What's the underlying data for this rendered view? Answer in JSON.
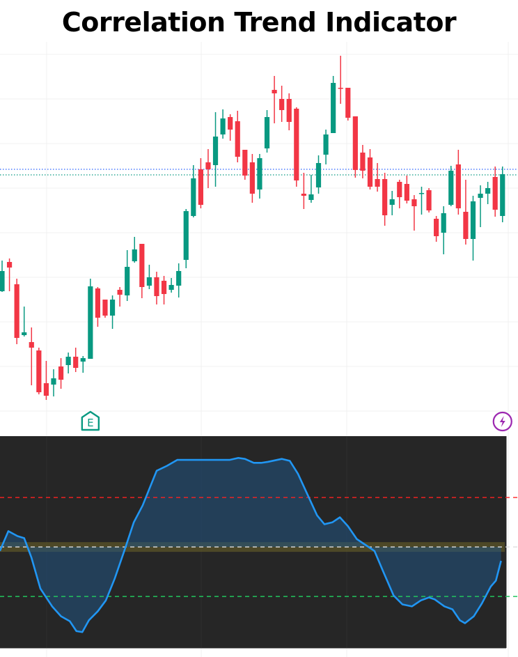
{
  "chart_data": [
    {
      "type": "candlestick",
      "title": "Correlation Trend Indicator",
      "xlabel": "",
      "ylabel": "",
      "ylim": [
        0,
        108
      ],
      "grid": true,
      "colors": {
        "up": "#089981",
        "down": "#f23645"
      },
      "price_lines": [
        {
          "value": 71.4,
          "color": "#2962ff",
          "style": "dotted"
        },
        {
          "value": 69.8,
          "color": "#089981",
          "style": "dotted"
        }
      ],
      "ohlc": [
        [
          36.4,
          45.2,
          36.2,
          42.2
        ],
        [
          44.8,
          45.8,
          36.4,
          43.2
        ],
        [
          38.4,
          40,
          21.2,
          23
        ],
        [
          23.8,
          32,
          23.4,
          24.6
        ],
        [
          21.8,
          26,
          9.4,
          20.2
        ],
        [
          19.4,
          20.2,
          6.8,
          7.4
        ],
        [
          10,
          16.4,
          5.2,
          6.4
        ],
        [
          9.6,
          14,
          6.2,
          11.4
        ],
        [
          14.8,
          17.2,
          8.4,
          11
        ],
        [
          15.2,
          18.8,
          12.8,
          17.6
        ],
        [
          17.6,
          20.2,
          13.2,
          14.4
        ],
        [
          16.2,
          17.8,
          13,
          17.2
        ],
        [
          17,
          40,
          17,
          37.8
        ],
        [
          37.2,
          37.6,
          26.2,
          28.8
        ],
        [
          34,
          34,
          28.8,
          29.4
        ],
        [
          29.4,
          35.2,
          25.6,
          34
        ],
        [
          36.8,
          37.6,
          32,
          35.4
        ],
        [
          35.2,
          48.2,
          33.6,
          43.4
        ],
        [
          45,
          52,
          44.6,
          48.4
        ],
        [
          50,
          50,
          34.4,
          37.6
        ],
        [
          38,
          44,
          37,
          40.4
        ],
        [
          40.4,
          42,
          32.6,
          35
        ],
        [
          39.4,
          40.8,
          32.6,
          35.6
        ],
        [
          36.8,
          40.2,
          36,
          38.2
        ],
        [
          38,
          44.4,
          34.6,
          42.2
        ],
        [
          45.4,
          60,
          43,
          59.4
        ],
        [
          58,
          72.6,
          57.6,
          68.8
        ],
        [
          71.4,
          74.6,
          60.2,
          61.2
        ],
        [
          73.4,
          77.2,
          66,
          71.4
        ],
        [
          72.6,
          87.8,
          66.4,
          80.8
        ],
        [
          81.4,
          88.6,
          80.2,
          86
        ],
        [
          86.4,
          87.2,
          79.6,
          82.8
        ],
        [
          85.2,
          88.2,
          73.4,
          75
        ],
        [
          77,
          77,
          68.4,
          69.6
        ],
        [
          73.4,
          75.8,
          61.8,
          64.4
        ],
        [
          65.6,
          75.8,
          63,
          74.6
        ],
        [
          77.4,
          88.4,
          76.2,
          86.4
        ],
        [
          94.2,
          98.2,
          84.6,
          93.2
        ],
        [
          91.6,
          95.4,
          85,
          88.4
        ],
        [
          91.6,
          93.2,
          82.6,
          85
        ],
        [
          88.8,
          89.2,
          66.4,
          68.2
        ],
        [
          64.4,
          70.4,
          60,
          63.8
        ],
        [
          62.6,
          69.8,
          61.8,
          64.2
        ],
        [
          66.2,
          75.4,
          64.4,
          73.2
        ],
        [
          75.6,
          82.8,
          72.8,
          81.4
        ],
        [
          81.8,
          98.2,
          81.8,
          96.2
        ],
        [
          94.8,
          104,
          90.2,
          94.6
        ],
        [
          94.8,
          94.8,
          85.4,
          86.2
        ],
        [
          86.6,
          86.6,
          69,
          71.2
        ],
        [
          76.2,
          78.4,
          68.8,
          71
        ],
        [
          74.8,
          77.2,
          65.6,
          66.4
        ],
        [
          68.6,
          73.2,
          65,
          66.4
        ],
        [
          68.6,
          70.4,
          55.2,
          58.2
        ],
        [
          61.2,
          65.2,
          58.2,
          62.8
        ],
        [
          67.8,
          68.4,
          60.2,
          63.4
        ],
        [
          67.2,
          69.6,
          61.6,
          62.4
        ],
        [
          62.8,
          64,
          53.8,
          60.8
        ],
        [
          64.4,
          66.4,
          58.4,
          64.6
        ],
        [
          65.4,
          66,
          59,
          59.6
        ],
        [
          57.2,
          58,
          50.6,
          52.2
        ],
        [
          53.2,
          60.8,
          47,
          58.8
        ],
        [
          61.2,
          72.4,
          60.8,
          71
        ],
        [
          72.8,
          77,
          58.4,
          60.2
        ],
        [
          59.2,
          68.4,
          49.8,
          51.4
        ],
        [
          51.4,
          63.8,
          45.2,
          62.2
        ],
        [
          63.2,
          66.8,
          54.8,
          64.4
        ],
        [
          64.4,
          67.8,
          61.4,
          66
        ],
        [
          69.2,
          72.2,
          57.8,
          59.8
        ],
        [
          58,
          72.2,
          56.2,
          70
        ]
      ],
      "markers": [
        {
          "bar": 13,
          "icon": "earnings-icon",
          "label": "E",
          "color": "#089981"
        },
        {
          "bar": 69,
          "icon": "lightning-icon",
          "color": "#9c27b0"
        }
      ]
    },
    {
      "type": "area",
      "ylim": [
        -1.02,
        1.12
      ],
      "line_color": "#2196f3",
      "fill_color": "#1e3a52",
      "background": "#262626",
      "levels": [
        {
          "value": 0.5,
          "color": "#ff2020",
          "style": "dashed"
        },
        {
          "value": 0,
          "color": "#dddddd",
          "style": "dashed"
        },
        {
          "value": -0.5,
          "color": "#22c55e",
          "style": "dashed"
        }
      ],
      "x": [
        0.7,
        1.85,
        3.1,
        4.0,
        5.0,
        6.2,
        7.8,
        9.0,
        10.2,
        11.1,
        11.9,
        12.8,
        14.0,
        15.1,
        16.3,
        17.6,
        18.9,
        20.1,
        22.0,
        23.4,
        24.8,
        26.7,
        31.9,
        33.1,
        34.0,
        35.2,
        36.2,
        37.1,
        39.0,
        40.1,
        41.2,
        42.5,
        43.8,
        44.8,
        45.9,
        46.9,
        48.0,
        49.2,
        50.4,
        51.6,
        52.8,
        54.2,
        55.4,
        56.7,
        57.9,
        59.0,
        59.8,
        61.1,
        62.2,
        63.2,
        63.9,
        65.1,
        66.2,
        67.4,
        68.1,
        68.8
      ],
      "values": [
        -0.04,
        0.16,
        0.11,
        0.09,
        -0.11,
        -0.42,
        -0.6,
        -0.7,
        -0.75,
        -0.85,
        -0.86,
        -0.74,
        -0.65,
        -0.54,
        -0.32,
        -0.04,
        0.25,
        0.42,
        0.77,
        0.82,
        0.88,
        0.88,
        0.88,
        0.9,
        0.89,
        0.85,
        0.85,
        0.86,
        0.89,
        0.87,
        0.74,
        0.53,
        0.32,
        0.23,
        0.25,
        0.3,
        0.21,
        0.08,
        0.02,
        -0.04,
        -0.25,
        -0.49,
        -0.58,
        -0.6,
        -0.54,
        -0.51,
        -0.53,
        -0.6,
        -0.63,
        -0.74,
        -0.77,
        -0.7,
        -0.57,
        -0.4,
        -0.34,
        -0.14
      ]
    }
  ]
}
